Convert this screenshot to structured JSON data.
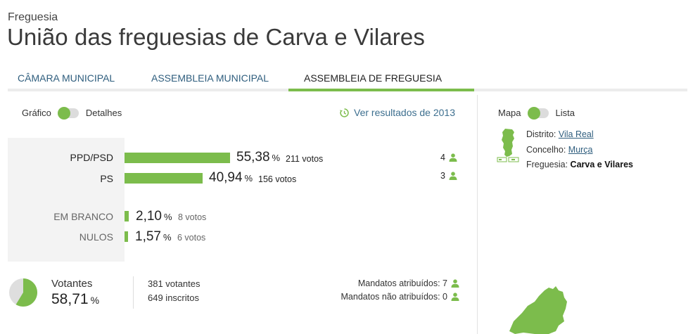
{
  "header": {
    "eyebrow": "Freguesia",
    "title": "União das freguesias de Carva e Vilares"
  },
  "tabs": [
    {
      "label": "CÂMARA MUNICIPAL",
      "active": false
    },
    {
      "label": "ASSEMBLEIA MUNICIPAL",
      "active": false
    },
    {
      "label": "ASSEMBLEIA DE FREGUESIA",
      "active": true
    }
  ],
  "view_toggle": {
    "left": "Gráfico",
    "right": "Detalhes"
  },
  "previous_results": {
    "label": "Ver resultados de 2013",
    "icon": "history-icon"
  },
  "results": [
    {
      "party": "PPD/PSD",
      "pct": "55,38",
      "pct_value": 55.38,
      "votes": "211 votos",
      "seats": "4"
    },
    {
      "party": "PS",
      "pct": "40,94",
      "pct_value": 40.94,
      "votes": "156 votos",
      "seats": "3"
    }
  ],
  "other_votes": [
    {
      "label": "EM BRANCO",
      "pct": "2,10",
      "pct_value": 2.1,
      "votes": "8 votos"
    },
    {
      "label": "NULOS",
      "pct": "1,57",
      "pct_value": 1.57,
      "votes": "6 votos"
    }
  ],
  "percent_sign": "%",
  "turnout": {
    "label": "Votantes",
    "pct": "58,71",
    "fraction": 0.5871,
    "voters": "381 votantes",
    "registered": "649 inscritos"
  },
  "mandates": {
    "assigned": "Mandatos atribuídos: 7",
    "unassigned": "Mandatos não atribuídos: 0"
  },
  "map_toggle": {
    "left": "Mapa",
    "right": "Lista"
  },
  "location": {
    "district_label": "Distrito:",
    "district": "Vila Real",
    "council_label": "Concelho:",
    "council": "Murça",
    "parish_label": "Freguesia:",
    "parish": "Carva e Vilares"
  },
  "colors": {
    "accent": "#7cbc4c",
    "link": "#2f5e7e"
  }
}
